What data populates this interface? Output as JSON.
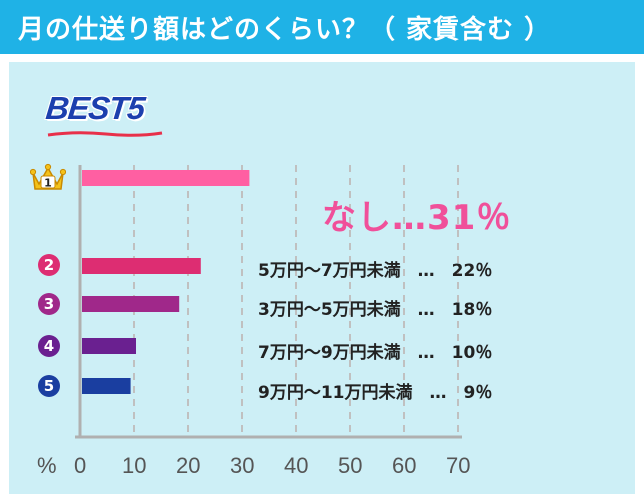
{
  "header": {
    "title": "月の仕送り額はどのくらい？（ 家賃含む ）"
  },
  "best_label": "BEST5",
  "colors": {
    "header_bg": "#1fb2e6",
    "panel_bg": "#cdeff6",
    "rank1": "#ff5fa2",
    "rank2": "#dd2d72",
    "rank3": "#a0288a",
    "rank4": "#6a2090",
    "rank5": "#1a3ea0"
  },
  "highlight_text": "なし…31％",
  "ranks": [
    {
      "rank": "1",
      "icon": "crown-icon"
    },
    {
      "rank": "2"
    },
    {
      "rank": "3"
    },
    {
      "rank": "4"
    },
    {
      "rank": "5"
    }
  ],
  "row_texts": [
    "5万円〜7万円未満　…　22％",
    "3万円〜5万円未満　…　18％",
    "7万円〜9万円未満　…　10％",
    "9万円〜11万円未満　…　9％"
  ],
  "chart_data": {
    "type": "bar",
    "orientation": "horizontal",
    "categories": [
      "なし",
      "5万円〜7万円未満",
      "3万円〜5万円未満",
      "7万円〜9万円未満",
      "9万円〜11万円未満"
    ],
    "values": [
      31,
      22,
      18,
      10,
      9
    ],
    "xlim": [
      0,
      70
    ],
    "x_ticks": [
      "0",
      "10",
      "20",
      "30",
      "40",
      "50",
      "60",
      "70"
    ],
    "x_unit_label": "%",
    "grid": true
  }
}
